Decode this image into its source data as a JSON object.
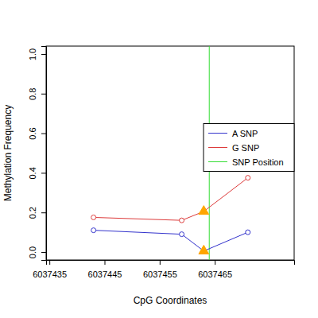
{
  "chart_data": {
    "type": "line",
    "x_label": "CpG Coordinates",
    "y_label": "Methylation Frequency",
    "xlim": [
      6037434.4,
      6037479.4
    ],
    "xticks": [
      6037435,
      6037445,
      6037455,
      6037465
    ],
    "ylim": [
      -0.04,
      1.04
    ],
    "yticks": [
      {
        "value": 0,
        "label": "0.0"
      },
      {
        "value": 0.2,
        "label": "0.2"
      },
      {
        "value": 0.4,
        "label": "0.4"
      },
      {
        "value": 0.6,
        "label": "0.6"
      },
      {
        "value": 0.8,
        "label": "0.8"
      },
      {
        "value": 1,
        "label": "1.0"
      }
    ],
    "legend": "right",
    "series": [
      {
        "name": "A SNP",
        "color": "#3333cc",
        "marker": "circle",
        "type": "line",
        "x": [
          6037443,
          6037459,
          6037463,
          6037471
        ],
        "values": [
          0.11,
          0.09,
          0.005,
          0.1
        ]
      },
      {
        "name": "G SNP",
        "color": "#dd3b3b",
        "marker": "circle",
        "type": "line",
        "x": [
          6037443,
          6037459,
          6037463,
          6037471
        ],
        "values": [
          0.175,
          0.16,
          0.205,
          0.375
        ]
      },
      {
        "color": "#ffa500",
        "marker": "triangle",
        "type": "scatter",
        "x": [
          6037463,
          6037463
        ],
        "values": [
          0.005,
          0.205
        ]
      }
    ],
    "reference_lines": [
      {
        "name": "SNP Position",
        "color": "#33dd33",
        "x": 6037464
      }
    ]
  }
}
